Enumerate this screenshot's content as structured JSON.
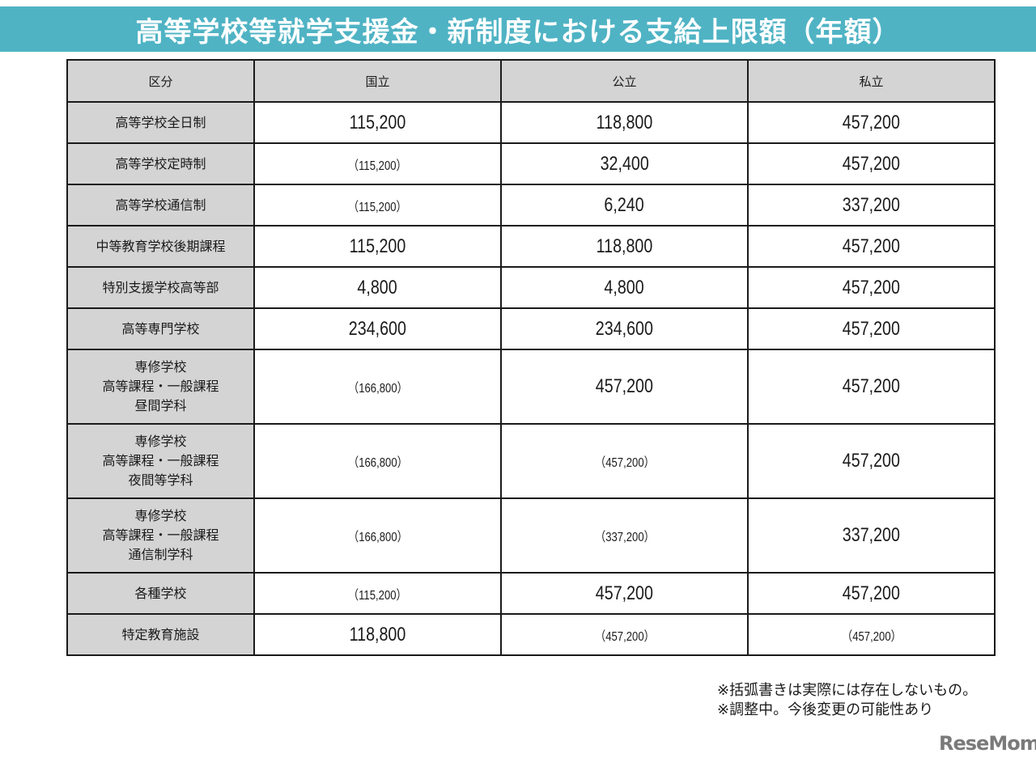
{
  "header": {
    "title": "高等学校等就学支援金・新制度における支給上限額（年額）"
  },
  "table": {
    "columns": [
      "区分",
      "国立",
      "公立",
      "私立"
    ],
    "rows": [
      {
        "label": "高等学校全日制",
        "national": "115,200",
        "public": "118,800",
        "private": "457,200",
        "lines": 1
      },
      {
        "label": "高等学校定時制",
        "national": "（115,200）",
        "public": "32,400",
        "private": "457,200",
        "lines": 1
      },
      {
        "label": "高等学校通信制",
        "national": "（115,200）",
        "public": "6,240",
        "private": "337,200",
        "lines": 1
      },
      {
        "label": "中等教育学校後期課程",
        "national": "115,200",
        "public": "118,800",
        "private": "457,200",
        "lines": 1
      },
      {
        "label": "特別支援学校高等部",
        "national": "4,800",
        "public": "4,800",
        "private": "457,200",
        "lines": 1
      },
      {
        "label": "高等専門学校",
        "national": "234,600",
        "public": "234,600",
        "private": "457,200",
        "lines": 1
      },
      {
        "label_lines": [
          "専修学校",
          "高等課程・一般課程",
          "昼間学科"
        ],
        "national": "（166,800）",
        "public": "457,200",
        "private": "457,200",
        "lines": 3
      },
      {
        "label_lines": [
          "専修学校",
          "高等課程・一般課程",
          "夜間等学科"
        ],
        "national": "（166,800）",
        "public": "（457,200）",
        "private": "457,200",
        "lines": 3
      },
      {
        "label_lines": [
          "専修学校",
          "高等課程・一般課程",
          "通信制学科"
        ],
        "national": "（166,800）",
        "public": "（337,200）",
        "private": "337,200",
        "lines": 3
      },
      {
        "label": "各種学校",
        "national": "（115,200）",
        "public": "457,200",
        "private": "457,200",
        "lines": 1
      },
      {
        "label": "特定教育施設",
        "national": "118,800",
        "public": "（457,200）",
        "private": "（457,200）",
        "lines": 1
      }
    ]
  },
  "notes": [
    "※括弧書きは実際には存在しないもの。",
    "※調整中。今後変更の可能性あり"
  ],
  "watermark": {
    "text": "ReseMom."
  },
  "colors": {
    "title_bg": "#4fb3c4",
    "header_bg": "#d4d4d4",
    "border": "#1a1a1a"
  }
}
